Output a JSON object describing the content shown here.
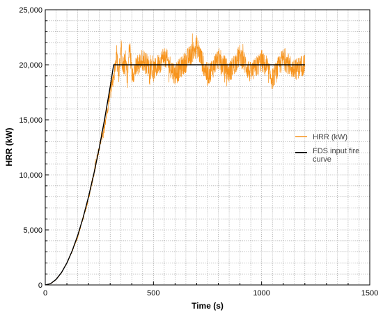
{
  "chart_data": {
    "type": "line",
    "xlabel": "Time  (s)",
    "ylabel": "HRR  (kW)",
    "xlim": [
      0,
      1500
    ],
    "ylim": [
      0,
      25000
    ],
    "x_ticks": [
      0,
      500,
      1000,
      1500
    ],
    "x_tick_labels": [
      "0",
      "500",
      "1000",
      "1500"
    ],
    "y_ticks": [
      0,
      5000,
      10000,
      15000,
      20000,
      25000
    ],
    "y_tick_labels": [
      "0",
      "5,000",
      "10,000",
      "15,000",
      "20,000",
      "25,000"
    ],
    "grid": true,
    "legend_position": "right",
    "colors": {
      "hrr": "#f7941d",
      "fds": "#000000",
      "grid": "#8c8c8c"
    },
    "series": [
      {
        "name": "HRR (kW)",
        "note_noise": "measured HRR oscillates around the design curve; after ~320 s it fluctuates roughly between 17,500 and 22,500 kW",
        "x": [
          0,
          25,
          50,
          75,
          100,
          125,
          150,
          175,
          200,
          225,
          250,
          260,
          270,
          280,
          290,
          300,
          310,
          320,
          330,
          340,
          350,
          360,
          370,
          380,
          390,
          400,
          450,
          500,
          550,
          600,
          650,
          700,
          750,
          800,
          850,
          900,
          950,
          1000,
          1050,
          1100,
          1150,
          1200
        ],
        "y": [
          0,
          100,
          480,
          1100,
          2000,
          3100,
          4400,
          6100,
          7900,
          10100,
          12500,
          13500,
          13900,
          15100,
          16300,
          17800,
          18400,
          19300,
          20900,
          19400,
          21500,
          19600,
          20400,
          18900,
          21800,
          19200,
          20500,
          19400,
          20800,
          19100,
          20300,
          21700,
          19000,
          20600,
          19300,
          20900,
          19200,
          20400,
          18700,
          20600,
          19500,
          20100
        ]
      },
      {
        "name": "FDS input fire curve",
        "x": [
          0,
          25,
          50,
          75,
          100,
          125,
          150,
          175,
          200,
          225,
          250,
          275,
          300,
          316,
          1200
        ],
        "y": [
          0,
          125,
          500,
          1125,
          2000,
          3125,
          4500,
          6125,
          8000,
          10125,
          12500,
          15125,
          18000,
          20000,
          20000
        ]
      }
    ]
  }
}
